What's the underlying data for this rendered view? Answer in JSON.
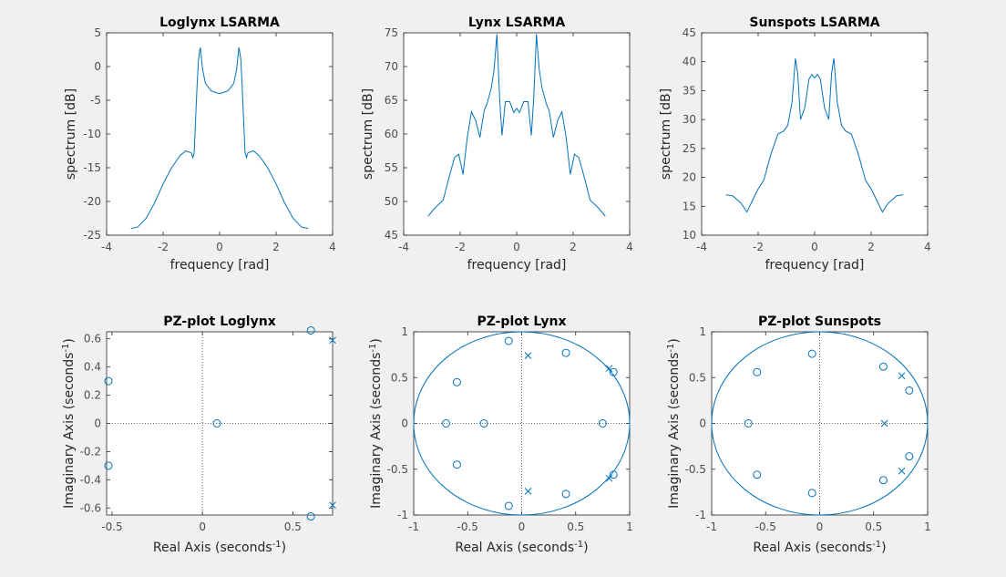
{
  "figure": {
    "background": "#f0f0f0",
    "line_color": "#0072bd",
    "axis_color": "#262626",
    "tick_color": "#4d4d4d"
  },
  "chart_data": [
    {
      "id": "loglynx-lsarma",
      "type": "line",
      "title": "Loglynx LSARMA",
      "xlabel": "frequency [rad]",
      "ylabel": "spectrum [dB]",
      "xlim": [
        -4,
        4
      ],
      "ylim": [
        -25,
        5
      ],
      "xticks": [
        -4,
        -2,
        0,
        2,
        4
      ],
      "yticks": [
        5,
        0,
        -5,
        -10,
        -15,
        -20,
        -25
      ],
      "xtick_labels": [
        "-4",
        "-2",
        "0",
        "2",
        "4"
      ],
      "ytick_labels": [
        "5",
        "0",
        "-5",
        "-10",
        "-15",
        "-20",
        "-25"
      ],
      "series": [
        {
          "x": [
            -3.14,
            -2.9,
            -2.6,
            -2.3,
            -2.0,
            -1.7,
            -1.4,
            -1.2,
            -1.0,
            -0.95,
            -0.9,
            -0.85,
            -0.8,
            -0.75,
            -0.7,
            -0.68,
            -0.6,
            -0.5,
            -0.3,
            -0.1,
            0,
            0.1,
            0.3,
            0.5,
            0.6,
            0.68,
            0.7,
            0.75,
            0.8,
            0.85,
            0.9,
            0.95,
            1.0,
            1.2,
            1.4,
            1.7,
            2.0,
            2.3,
            2.6,
            2.9,
            3.14
          ],
          "y": [
            -24,
            -23.8,
            -22.5,
            -20.2,
            -17.4,
            -15.0,
            -13.2,
            -12.5,
            -12.8,
            -13.5,
            -12.8,
            -8.0,
            -3.0,
            1.0,
            2.5,
            2.8,
            -0.5,
            -2.5,
            -3.6,
            -3.9,
            -4.0,
            -3.9,
            -3.6,
            -2.5,
            -0.5,
            2.8,
            2.5,
            1.0,
            -3.0,
            -8.0,
            -12.8,
            -13.5,
            -12.8,
            -12.5,
            -13.2,
            -15.0,
            -17.4,
            -20.2,
            -22.5,
            -23.8,
            -24
          ]
        }
      ]
    },
    {
      "id": "lynx-lsarma",
      "type": "line",
      "title": "Lynx LSARMA",
      "xlabel": "frequency [rad]",
      "ylabel": "spectrum [dB]",
      "xlim": [
        -4,
        4
      ],
      "ylim": [
        45,
        75
      ],
      "xticks": [
        -4,
        -2,
        0,
        2,
        4
      ],
      "yticks": [
        75,
        70,
        65,
        60,
        55,
        50,
        45
      ],
      "xtick_labels": [
        "-4",
        "-2",
        "0",
        "2",
        "4"
      ],
      "ytick_labels": [
        "75",
        "70",
        "65",
        "60",
        "55",
        "50",
        "45"
      ],
      "series": [
        {
          "x": [
            -3.14,
            -2.9,
            -2.6,
            -2.4,
            -2.2,
            -2.05,
            -1.9,
            -1.75,
            -1.6,
            -1.45,
            -1.3,
            -1.15,
            -1.05,
            -0.9,
            -0.8,
            -0.7,
            -0.6,
            -0.52,
            -0.4,
            -0.25,
            -0.1,
            0,
            0.1,
            0.25,
            0.4,
            0.52,
            0.6,
            0.7,
            0.8,
            0.9,
            1.05,
            1.15,
            1.3,
            1.45,
            1.6,
            1.75,
            1.9,
            2.05,
            2.2,
            2.4,
            2.6,
            2.9,
            3.14
          ],
          "y": [
            47.8,
            49.0,
            50.2,
            53.5,
            56.5,
            57.0,
            54.0,
            59.5,
            63.3,
            62.0,
            59.5,
            63.5,
            64.5,
            66.8,
            69.5,
            74.8,
            65.0,
            59.8,
            64.8,
            64.8,
            63.2,
            63.8,
            63.2,
            64.8,
            64.8,
            59.8,
            65.0,
            74.8,
            69.5,
            66.8,
            64.5,
            63.5,
            59.5,
            62.0,
            63.3,
            59.5,
            54.0,
            57.0,
            56.5,
            53.5,
            50.2,
            49.0,
            47.8
          ]
        }
      ]
    },
    {
      "id": "sunspots-lsarma",
      "type": "line",
      "title": "Sunspots LSARMA",
      "xlabel": "frequency [rad]",
      "ylabel": "spectrum [dB]",
      "xlim": [
        -4,
        4
      ],
      "ylim": [
        10,
        45
      ],
      "xticks": [
        -4,
        -2,
        0,
        2,
        4
      ],
      "yticks": [
        45,
        40,
        35,
        30,
        25,
        20,
        15,
        10
      ],
      "xtick_labels": [
        "-4",
        "-2",
        "0",
        "2",
        "4"
      ],
      "ytick_labels": [
        "45",
        "40",
        "35",
        "30",
        "25",
        "20",
        "15",
        "10"
      ],
      "series": [
        {
          "x": [
            -3.14,
            -2.9,
            -2.6,
            -2.4,
            -2.2,
            -2.0,
            -1.8,
            -1.55,
            -1.3,
            -1.1,
            -0.95,
            -0.8,
            -0.68,
            -0.6,
            -0.5,
            -0.35,
            -0.2,
            -0.1,
            0,
            0.1,
            0.2,
            0.35,
            0.5,
            0.6,
            0.68,
            0.8,
            0.95,
            1.1,
            1.3,
            1.55,
            1.8,
            2.0,
            2.2,
            2.4,
            2.6,
            2.9,
            3.14
          ],
          "y": [
            17.0,
            16.8,
            15.5,
            14.0,
            16.0,
            18.0,
            19.5,
            24.0,
            27.5,
            28.0,
            29.0,
            33.0,
            40.6,
            38.0,
            30.0,
            32.0,
            37.0,
            37.8,
            37.2,
            37.8,
            37.0,
            32.0,
            30.0,
            38.0,
            40.6,
            33.0,
            29.0,
            28.0,
            27.5,
            24.0,
            19.5,
            18.0,
            16.0,
            14.0,
            15.5,
            16.8,
            17.0
          ]
        }
      ]
    },
    {
      "id": "pz-loglynx",
      "type": "scatter",
      "title": "PZ-plot Loglynx",
      "xlabel": "Real Axis (seconds",
      "ylabel": "Imaginary Axis (seconds",
      "unit_superscript": "-1",
      "unit_close": ")",
      "xlim": [
        -0.53,
        0.72
      ],
      "ylim": [
        -0.65,
        0.65
      ],
      "xticks": [
        -0.5,
        0,
        0.5
      ],
      "yticks": [
        0.6,
        0.4,
        0.2,
        0,
        -0.2,
        -0.4,
        -0.6
      ],
      "xtick_labels": [
        "-0.5",
        "0",
        "0.5"
      ],
      "ytick_labels": [
        "0.6",
        "0.4",
        "0.2",
        "0",
        "-0.2",
        "-0.4",
        "-0.6"
      ],
      "unit_circle": false,
      "zeros": [
        [
          -0.52,
          0.3
        ],
        [
          -0.52,
          -0.3
        ],
        [
          0.08,
          0
        ],
        [
          0.6,
          0.66
        ],
        [
          0.6,
          -0.66
        ]
      ],
      "poles": [
        [
          0.72,
          0.59
        ],
        [
          0.72,
          -0.58
        ]
      ]
    },
    {
      "id": "pz-lynx",
      "type": "scatter",
      "title": "PZ-plot Lynx",
      "xlabel": "Real Axis (seconds",
      "ylabel": "Imaginary Axis (seconds",
      "unit_superscript": "-1",
      "unit_close": ")",
      "xlim": [
        -1,
        1
      ],
      "ylim": [
        -1,
        1
      ],
      "xticks": [
        -1,
        -0.5,
        0,
        0.5,
        1
      ],
      "yticks": [
        1,
        0.5,
        0,
        -0.5,
        -1
      ],
      "xtick_labels": [
        "-1",
        "-0.5",
        "0",
        "0.5",
        "1"
      ],
      "ytick_labels": [
        "1",
        "0.5",
        "0",
        "-0.5",
        "-1"
      ],
      "unit_circle": true,
      "zeros": [
        [
          -0.12,
          0.9
        ],
        [
          -0.12,
          -0.9
        ],
        [
          0.41,
          0.77
        ],
        [
          0.41,
          -0.77
        ],
        [
          -0.6,
          0.45
        ],
        [
          -0.6,
          -0.45
        ],
        [
          -0.7,
          0
        ],
        [
          -0.35,
          0
        ],
        [
          0.75,
          0
        ],
        [
          0.85,
          0.56
        ],
        [
          0.85,
          -0.56
        ]
      ],
      "poles": [
        [
          0.06,
          0.74
        ],
        [
          0.06,
          -0.74
        ],
        [
          0.81,
          0.6
        ],
        [
          0.81,
          -0.6
        ]
      ]
    },
    {
      "id": "pz-sunspots",
      "type": "scatter",
      "title": "PZ-plot Sunspots",
      "xlabel": "Real Axis (seconds",
      "ylabel": "Imaginary Axis (seconds",
      "unit_superscript": "-1",
      "unit_close": ")",
      "xlim": [
        -1,
        1
      ],
      "ylim": [
        -1,
        1
      ],
      "xticks": [
        -1,
        -0.5,
        0,
        0.5,
        1
      ],
      "yticks": [
        1,
        0.5,
        0,
        -0.5,
        -1
      ],
      "xtick_labels": [
        "-1",
        "-0.5",
        "0",
        "0.5",
        "1"
      ],
      "ytick_labels": [
        "1",
        "0.5",
        "0",
        "-0.5",
        "-1"
      ],
      "unit_circle": true,
      "zeros": [
        [
          -0.07,
          0.76
        ],
        [
          -0.07,
          -0.76
        ],
        [
          -0.58,
          0.56
        ],
        [
          -0.58,
          -0.56
        ],
        [
          -0.66,
          0
        ],
        [
          0.59,
          0.62
        ],
        [
          0.59,
          -0.62
        ],
        [
          0.83,
          0.36
        ],
        [
          0.83,
          -0.36
        ]
      ],
      "poles": [
        [
          0.76,
          0.52
        ],
        [
          0.76,
          -0.52
        ],
        [
          0.6,
          0
        ]
      ]
    }
  ]
}
